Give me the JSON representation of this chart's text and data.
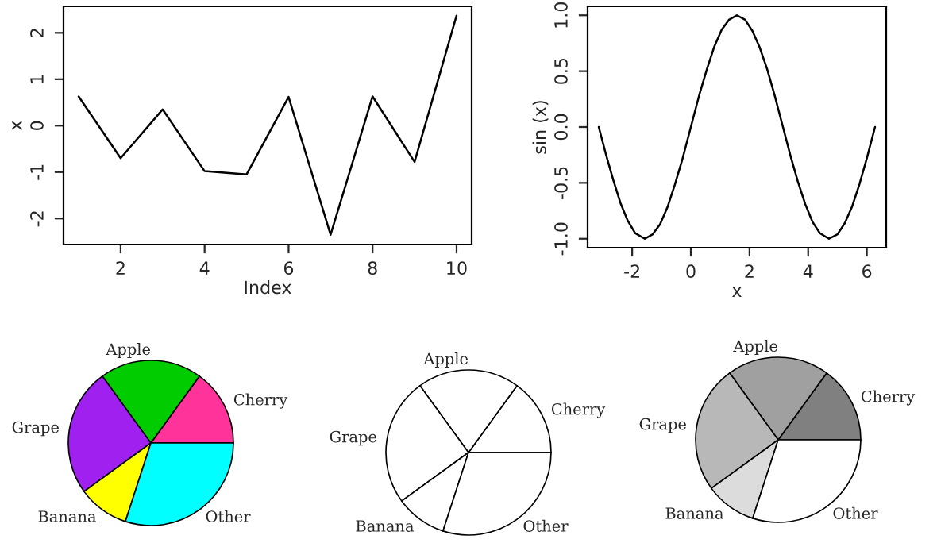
{
  "chart_data": [
    {
      "type": "line",
      "xlabel": "Index",
      "ylabel": "x",
      "x": [
        1,
        2,
        3,
        4,
        5,
        6,
        7,
        8,
        9,
        10
      ],
      "series": [
        {
          "color": "#000000",
          "values": [
            0.63,
            -0.7,
            0.35,
            -0.98,
            -1.05,
            0.62,
            -2.35,
            0.63,
            -0.78,
            2.37
          ]
        }
      ],
      "xlim": [
        0.64,
        10.36
      ],
      "ylim": [
        -2.56,
        2.57
      ],
      "xticks": [
        2,
        4,
        6,
        8,
        10
      ],
      "yticks": [
        -2,
        -1,
        0,
        1,
        2
      ],
      "grid": false,
      "legend": false
    },
    {
      "type": "line",
      "xlabel": "x",
      "ylabel": "sin (x)",
      "x": [
        -3.14,
        -2.9,
        -2.65,
        -2.4,
        -2.15,
        -1.9,
        -1.57,
        -1.3,
        -1.05,
        -0.8,
        -0.55,
        -0.3,
        0,
        0.3,
        0.55,
        0.8,
        1.05,
        1.3,
        1.57,
        1.85,
        2.1,
        2.35,
        2.6,
        2.85,
        3.14,
        3.4,
        3.65,
        3.9,
        4.15,
        4.4,
        4.71,
        5.0,
        5.25,
        5.5,
        5.75,
        6.0,
        6.28
      ],
      "series": [
        {
          "color": "#000000",
          "values": [
            0,
            -0.24,
            -0.47,
            -0.68,
            -0.84,
            -0.95,
            -1,
            -0.96,
            -0.87,
            -0.72,
            -0.52,
            -0.3,
            0,
            0.3,
            0.52,
            0.72,
            0.87,
            0.96,
            1,
            0.96,
            0.86,
            0.71,
            0.52,
            0.29,
            0,
            -0.26,
            -0.49,
            -0.69,
            -0.85,
            -0.95,
            -1,
            -0.96,
            -0.86,
            -0.71,
            -0.51,
            -0.28,
            0
          ]
        }
      ],
      "xlim": [
        -3.52,
        6.66
      ],
      "ylim": [
        -1.08,
        1.08
      ],
      "xticks": [
        -2,
        0,
        2,
        4,
        6
      ],
      "yticks": [
        {
          "value": -1,
          "label": "-1.0"
        },
        {
          "value": -0.5,
          "label": "-0.5"
        },
        {
          "value": 0,
          "label": "0.0"
        },
        {
          "value": 0.5,
          "label": "0.5"
        },
        {
          "value": 1,
          "label": "1.0"
        }
      ],
      "grid": false,
      "legend": false
    },
    {
      "type": "pie",
      "categories": [
        "Cherry",
        "Apple",
        "Grape",
        "Banana",
        "Other"
      ],
      "values": [
        15,
        20,
        25,
        10,
        30
      ],
      "colors": [
        "#ff3399",
        "#00cc00",
        "#a020f0",
        "#ffff00",
        "#00ffff"
      ]
    },
    {
      "type": "pie",
      "categories": [
        "Cherry",
        "Apple",
        "Grape",
        "Banana",
        "Other"
      ],
      "values": [
        15,
        20,
        25,
        10,
        30
      ],
      "colors": [
        "#ffffff",
        "#ffffff",
        "#ffffff",
        "#ffffff",
        "#ffffff"
      ]
    },
    {
      "type": "pie",
      "categories": [
        "Cherry",
        "Apple",
        "Grape",
        "Banana",
        "Other"
      ],
      "values": [
        15,
        20,
        25,
        10,
        30
      ],
      "colors": [
        "#808080",
        "#a0a0a0",
        "#b8b8b8",
        "#dcdcdc",
        "#ffffff"
      ]
    }
  ]
}
